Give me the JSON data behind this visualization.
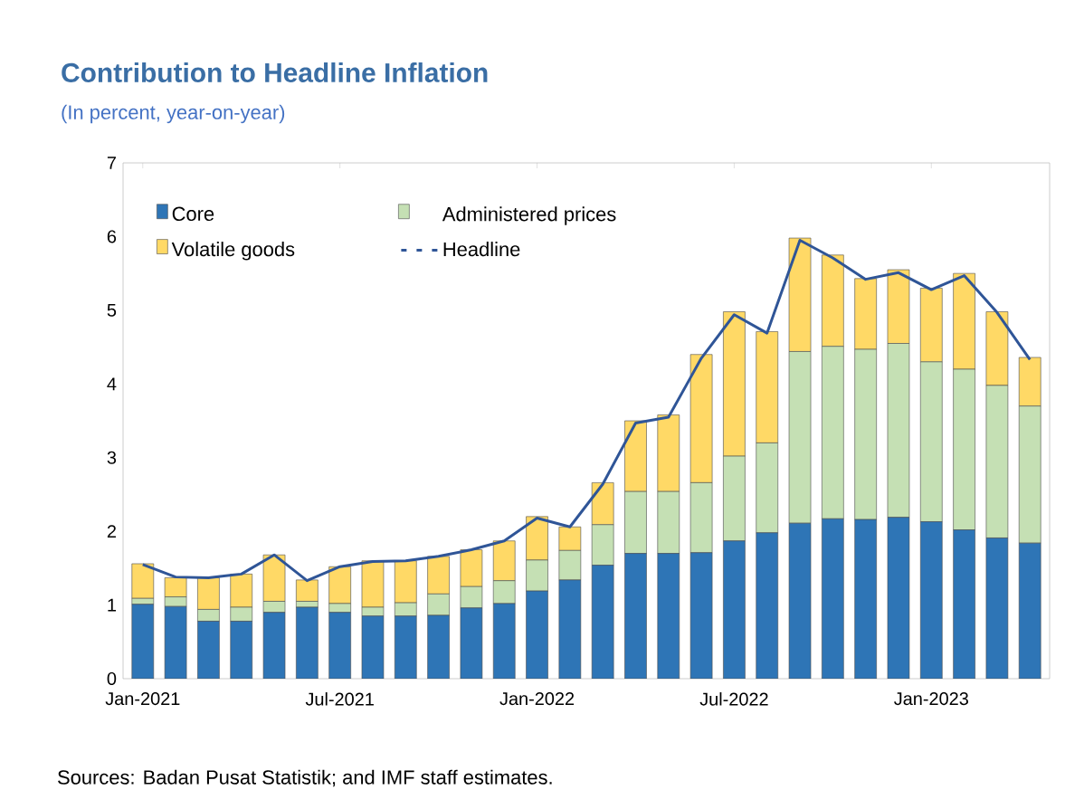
{
  "chart_data": {
    "type": "bar",
    "stacked": true,
    "title": "Contribution to Headline Inflation",
    "subtitle": "(In percent, year-on-year)",
    "categories": [
      "Jan-2021",
      null,
      null,
      null,
      null,
      null,
      "Jul-2021",
      null,
      null,
      null,
      null,
      null,
      "Jan-2022",
      null,
      null,
      null,
      null,
      null,
      "Jul-2022",
      null,
      null,
      null,
      null,
      null,
      "Jan-2023",
      null,
      null,
      null
    ],
    "series": [
      {
        "name": "Core",
        "color": "#2e75b6",
        "values": [
          1.01,
          0.98,
          0.78,
          0.78,
          0.9,
          0.97,
          0.9,
          0.85,
          0.85,
          0.86,
          0.96,
          1.02,
          1.19,
          1.34,
          1.54,
          1.7,
          1.7,
          1.71,
          1.87,
          1.98,
          2.11,
          2.17,
          2.16,
          2.19,
          2.13,
          2.02,
          1.91,
          1.84
        ]
      },
      {
        "name": "Administered prices",
        "color": "#c5e0b4",
        "values": [
          0.08,
          0.13,
          0.16,
          0.19,
          0.15,
          0.08,
          0.12,
          0.12,
          0.18,
          0.29,
          0.29,
          0.31,
          0.42,
          0.4,
          0.55,
          0.84,
          0.84,
          0.95,
          1.15,
          1.22,
          2.33,
          2.34,
          2.31,
          2.36,
          2.17,
          2.18,
          2.07,
          1.86
        ]
      },
      {
        "name": "Volatile goods",
        "color": "#ffd966",
        "values": [
          0.47,
          0.26,
          0.43,
          0.45,
          0.63,
          0.29,
          0.5,
          0.63,
          0.57,
          0.51,
          0.5,
          0.54,
          0.59,
          0.32,
          0.57,
          0.96,
          1.04,
          1.74,
          1.96,
          1.51,
          1.54,
          1.24,
          0.96,
          1.0,
          1.0,
          1.3,
          1.0,
          0.66
        ]
      },
      {
        "name": "Headline",
        "type": "line",
        "color": "#2f5597",
        "values": [
          1.55,
          1.38,
          1.37,
          1.42,
          1.68,
          1.33,
          1.52,
          1.59,
          1.6,
          1.66,
          1.75,
          1.87,
          2.18,
          2.06,
          2.64,
          3.47,
          3.55,
          4.35,
          4.94,
          4.69,
          5.95,
          5.71,
          5.42,
          5.51,
          5.28,
          5.47,
          4.97,
          4.33
        ]
      }
    ],
    "ylim": [
      0,
      7
    ],
    "yticks": [
      0,
      1,
      2,
      3,
      4,
      5,
      6,
      7
    ],
    "legend": "top left",
    "annotations": [
      "Sources: Badan Pusat Statistik; and IMF staff estimates."
    ]
  }
}
